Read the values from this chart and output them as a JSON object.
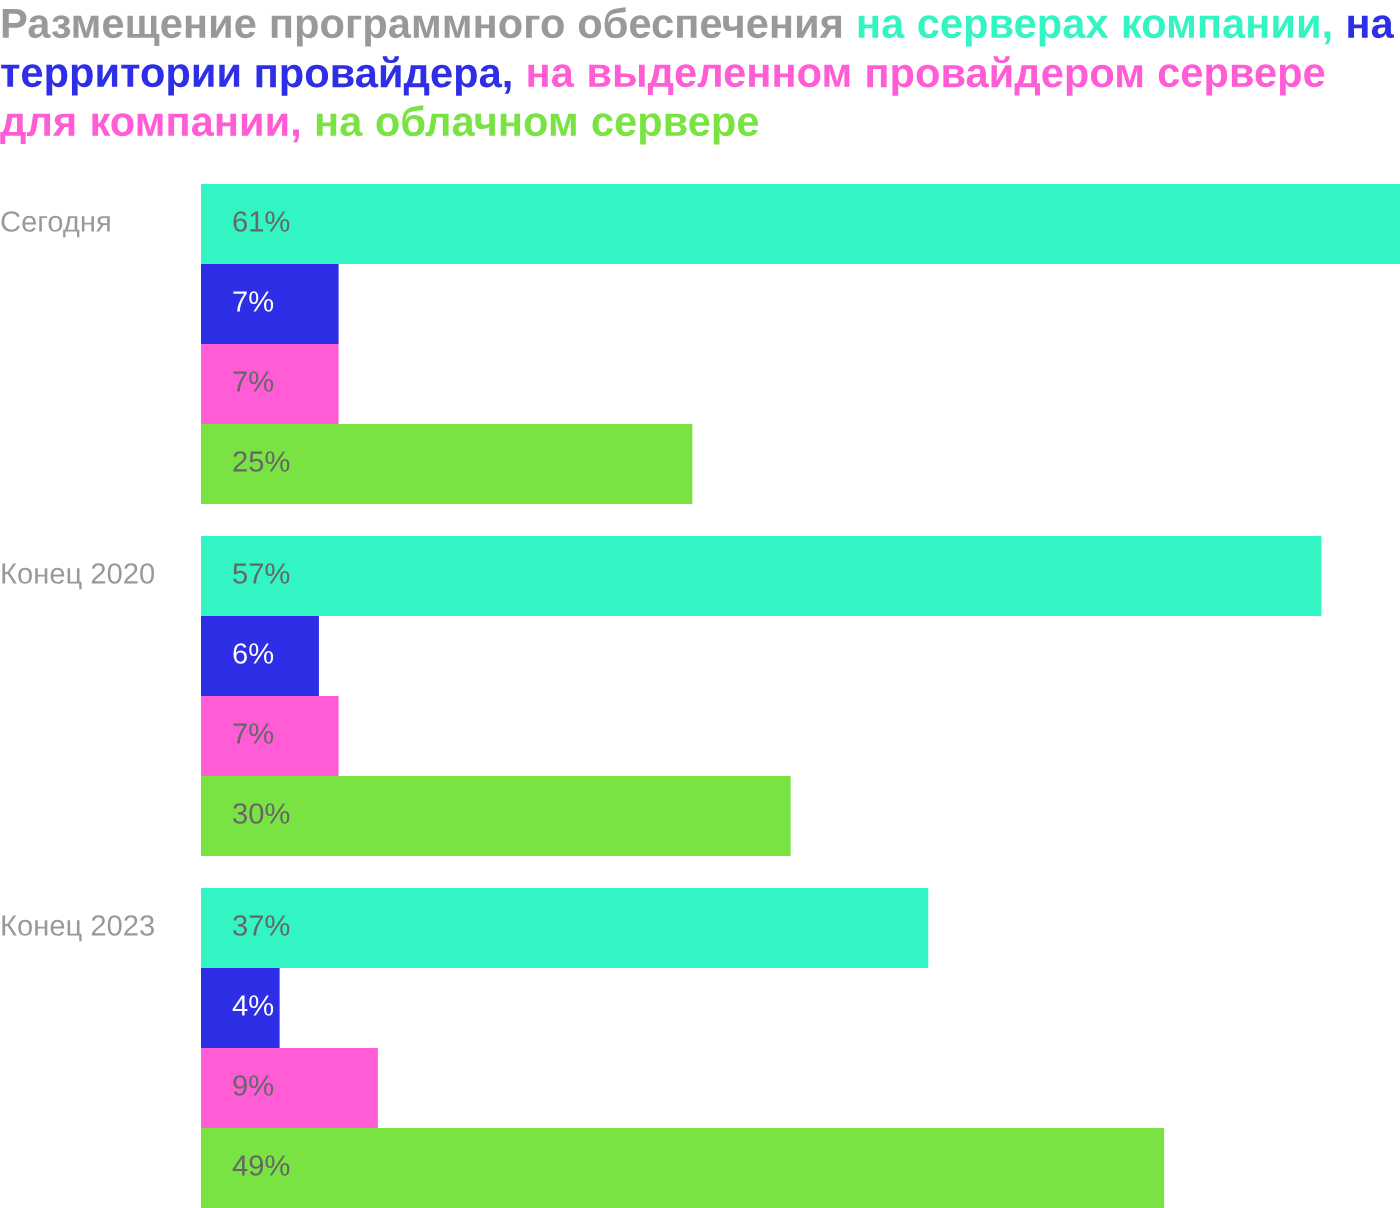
{
  "chart_data": {
    "type": "bar",
    "orientation": "horizontal",
    "title": "Размещение программного обеспечения",
    "categories": [
      "Сегодня",
      "Конец 2020",
      "Конец 2023"
    ],
    "series": [
      {
        "name": "на серверах компании,",
        "color": "#33f5c4",
        "values": [
          61,
          57,
          37
        ],
        "value_labels": [
          "61%",
          "57%",
          "37%"
        ]
      },
      {
        "name": "на территории провайдера,",
        "color": "#2e2ee6",
        "values": [
          7,
          6,
          4
        ],
        "value_labels": [
          "7%",
          "6%",
          "4%"
        ]
      },
      {
        "name": "на выделенном провайдером сервере для компании,",
        "color": "#ff5cd6",
        "values": [
          7,
          7,
          9
        ],
        "value_labels": [
          "7%",
          "7%",
          "9%"
        ]
      },
      {
        "name": "на облачном сервере",
        "color": "#7ae344",
        "values": [
          25,
          30,
          49
        ],
        "value_labels": [
          "25%",
          "30%",
          "49%"
        ]
      }
    ]
  }
}
